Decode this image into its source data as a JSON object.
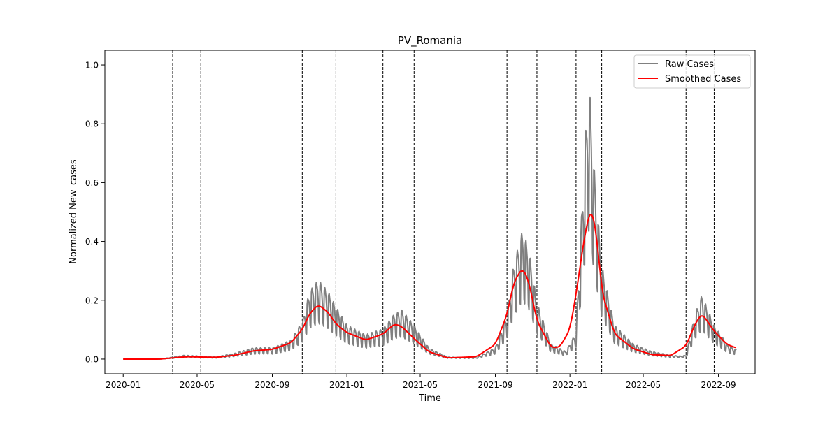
{
  "chart_data": {
    "type": "line",
    "title": "PV_Romania",
    "xlabel": "Time",
    "ylabel": "Normalized New_cases",
    "xlim": [
      "2019-12-02",
      "2022-10-31"
    ],
    "ylim": [
      -0.05,
      1.05
    ],
    "x_ticks": [
      "2020-01",
      "2020-05",
      "2020-09",
      "2021-01",
      "2021-05",
      "2021-09",
      "2022-01",
      "2022-05",
      "2022-09"
    ],
    "y_ticks": [
      "0.0",
      "0.2",
      "0.4",
      "0.6",
      "0.8",
      "1.0"
    ],
    "y_tick_values": [
      0.0,
      0.2,
      0.4,
      0.6,
      0.8,
      1.0
    ],
    "grid": false,
    "legend_position": "top-right",
    "vertical_lines": [
      "2020-03-22",
      "2020-05-07",
      "2020-10-20",
      "2020-12-14",
      "2021-03-01",
      "2021-04-21",
      "2021-09-20",
      "2021-11-08",
      "2022-01-11",
      "2022-02-22",
      "2022-07-10",
      "2022-08-25"
    ],
    "series": [
      {
        "name": "Raw Cases",
        "color": "#808080",
        "style": "weekly-oscillating",
        "points": [
          [
            "2020-01-01",
            0.0
          ],
          [
            "2020-03-01",
            0.0
          ],
          [
            "2020-03-22",
            0.005
          ],
          [
            "2020-04-10",
            0.01
          ],
          [
            "2020-05-07",
            0.008
          ],
          [
            "2020-06-01",
            0.006
          ],
          [
            "2020-07-01",
            0.015
          ],
          [
            "2020-08-01",
            0.03
          ],
          [
            "2020-09-01",
            0.03
          ],
          [
            "2020-10-01",
            0.05
          ],
          [
            "2020-10-20",
            0.1
          ],
          [
            "2020-11-01",
            0.18
          ],
          [
            "2020-11-15",
            0.21
          ],
          [
            "2020-12-01",
            0.18
          ],
          [
            "2020-12-14",
            0.14
          ],
          [
            "2021-01-01",
            0.09
          ],
          [
            "2021-02-01",
            0.065
          ],
          [
            "2021-03-01",
            0.08
          ],
          [
            "2021-03-20",
            0.12
          ],
          [
            "2021-04-01",
            0.13
          ],
          [
            "2021-04-21",
            0.09
          ],
          [
            "2021-05-15",
            0.03
          ],
          [
            "2021-06-15",
            0.005
          ],
          [
            "2021-08-01",
            0.004
          ],
          [
            "2021-09-01",
            0.03
          ],
          [
            "2021-09-20",
            0.12
          ],
          [
            "2021-10-01",
            0.25
          ],
          [
            "2021-10-15",
            0.34
          ],
          [
            "2021-10-25",
            0.3
          ],
          [
            "2021-11-08",
            0.15
          ],
          [
            "2021-12-01",
            0.04
          ],
          [
            "2021-12-25",
            0.02
          ],
          [
            "2022-01-11",
            0.07
          ],
          [
            "2022-01-25",
            0.55
          ],
          [
            "2022-02-01",
            0.75
          ],
          [
            "2022-02-10",
            0.5
          ],
          [
            "2022-02-22",
            0.25
          ],
          [
            "2022-03-15",
            0.09
          ],
          [
            "2022-04-15",
            0.04
          ],
          [
            "2022-05-15",
            0.02
          ],
          [
            "2022-06-15",
            0.01
          ],
          [
            "2022-07-01",
            0.008
          ],
          [
            "2022-07-10",
            0.01
          ],
          [
            "2022-07-25",
            0.12
          ],
          [
            "2022-08-05",
            0.17
          ],
          [
            "2022-08-25",
            0.09
          ],
          [
            "2022-09-15",
            0.04
          ],
          [
            "2022-09-30",
            0.025
          ]
        ]
      },
      {
        "name": "Smoothed Cases",
        "color": "#ff0000",
        "points": [
          [
            "2020-01-01",
            0.0
          ],
          [
            "2020-03-01",
            0.0
          ],
          [
            "2020-04-01",
            0.006
          ],
          [
            "2020-04-15",
            0.008
          ],
          [
            "2020-05-07",
            0.007
          ],
          [
            "2020-06-01",
            0.006
          ],
          [
            "2020-07-01",
            0.013
          ],
          [
            "2020-08-01",
            0.028
          ],
          [
            "2020-09-01",
            0.033
          ],
          [
            "2020-10-01",
            0.055
          ],
          [
            "2020-10-20",
            0.1
          ],
          [
            "2020-11-01",
            0.155
          ],
          [
            "2020-11-15",
            0.185
          ],
          [
            "2020-12-01",
            0.16
          ],
          [
            "2020-12-14",
            0.12
          ],
          [
            "2021-01-01",
            0.09
          ],
          [
            "2021-02-01",
            0.065
          ],
          [
            "2021-03-01",
            0.085
          ],
          [
            "2021-03-20",
            0.12
          ],
          [
            "2021-04-01",
            0.11
          ],
          [
            "2021-04-21",
            0.07
          ],
          [
            "2021-05-15",
            0.025
          ],
          [
            "2021-06-15",
            0.004
          ],
          [
            "2021-08-01",
            0.008
          ],
          [
            "2021-09-01",
            0.05
          ],
          [
            "2021-09-20",
            0.15
          ],
          [
            "2021-10-01",
            0.26
          ],
          [
            "2021-10-15",
            0.31
          ],
          [
            "2021-10-25",
            0.27
          ],
          [
            "2021-11-08",
            0.13
          ],
          [
            "2021-12-01",
            0.04
          ],
          [
            "2021-12-15",
            0.04
          ],
          [
            "2022-01-01",
            0.1
          ],
          [
            "2022-01-11",
            0.22
          ],
          [
            "2022-01-25",
            0.42
          ],
          [
            "2022-02-05",
            0.52
          ],
          [
            "2022-02-15",
            0.4
          ],
          [
            "2022-02-22",
            0.23
          ],
          [
            "2022-03-15",
            0.085
          ],
          [
            "2022-04-15",
            0.035
          ],
          [
            "2022-05-15",
            0.015
          ],
          [
            "2022-06-15",
            0.012
          ],
          [
            "2022-07-10",
            0.045
          ],
          [
            "2022-07-25",
            0.12
          ],
          [
            "2022-08-05",
            0.155
          ],
          [
            "2022-08-25",
            0.095
          ],
          [
            "2022-09-15",
            0.05
          ],
          [
            "2022-09-30",
            0.038
          ]
        ]
      }
    ]
  }
}
